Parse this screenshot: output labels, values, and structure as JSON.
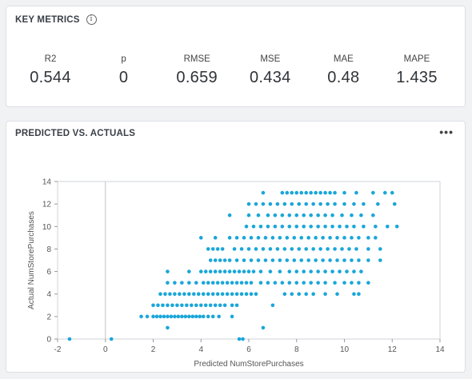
{
  "metrics_card": {
    "title": "KEY METRICS",
    "info_icon": "info-icon",
    "metrics": [
      {
        "label": "R2",
        "value": "0.544"
      },
      {
        "label": "p",
        "value": "0"
      },
      {
        "label": "RMSE",
        "value": "0.659"
      },
      {
        "label": "MSE",
        "value": "0.434"
      },
      {
        "label": "MAE",
        "value": "0.48"
      },
      {
        "label": "MAPE",
        "value": "1.435"
      }
    ]
  },
  "chart_card": {
    "title": "PREDICTED VS. ACTUALS",
    "menu_icon": "more-dots-icon"
  },
  "chart_data": {
    "type": "scatter",
    "xlabel": "Predicted NumStorePurchases",
    "ylabel": "Actual NumStorePurchases",
    "xlim": [
      -2,
      14
    ],
    "ylim": [
      0,
      14
    ],
    "xticks": [
      "-2",
      "0",
      "2",
      "4",
      "6",
      "8",
      "10",
      "12",
      "14"
    ],
    "yticks": [
      "0",
      "2",
      "4",
      "6",
      "8",
      "10",
      "12",
      "14"
    ],
    "point_color": "#1aa6d9",
    "points": [
      [
        -1.5,
        0
      ],
      [
        0.25,
        0
      ],
      [
        5.6,
        0
      ],
      [
        5.75,
        0
      ],
      [
        2.6,
        1
      ],
      [
        6.6,
        1
      ],
      [
        7.0,
        3
      ],
      [
        2.0,
        3
      ],
      [
        2.2,
        3
      ],
      [
        2.4,
        3
      ],
      [
        2.6,
        3
      ],
      [
        2.8,
        3
      ],
      [
        3.0,
        3
      ],
      [
        3.2,
        3
      ],
      [
        3.4,
        3
      ],
      [
        3.6,
        3
      ],
      [
        3.8,
        3
      ],
      [
        4.0,
        3
      ],
      [
        4.2,
        3
      ],
      [
        4.4,
        3
      ],
      [
        4.6,
        3
      ],
      [
        4.8,
        3
      ],
      [
        5.0,
        3
      ],
      [
        5.3,
        3
      ],
      [
        5.5,
        3
      ],
      [
        1.5,
        2
      ],
      [
        1.75,
        2
      ],
      [
        2.0,
        2
      ],
      [
        2.15,
        2
      ],
      [
        2.3,
        2
      ],
      [
        2.45,
        2
      ],
      [
        2.6,
        2
      ],
      [
        2.75,
        2
      ],
      [
        2.9,
        2
      ],
      [
        3.05,
        2
      ],
      [
        3.2,
        2
      ],
      [
        3.35,
        2
      ],
      [
        3.5,
        2
      ],
      [
        3.65,
        2
      ],
      [
        3.8,
        2
      ],
      [
        3.95,
        2
      ],
      [
        4.1,
        2
      ],
      [
        4.3,
        2
      ],
      [
        4.5,
        2
      ],
      [
        4.75,
        2
      ],
      [
        5.3,
        2
      ],
      [
        2.3,
        4
      ],
      [
        2.5,
        4
      ],
      [
        2.7,
        4
      ],
      [
        2.9,
        4
      ],
      [
        3.1,
        4
      ],
      [
        3.3,
        4
      ],
      [
        3.5,
        4
      ],
      [
        3.7,
        4
      ],
      [
        3.9,
        4
      ],
      [
        4.1,
        4
      ],
      [
        4.3,
        4
      ],
      [
        4.5,
        4
      ],
      [
        4.7,
        4
      ],
      [
        4.9,
        4
      ],
      [
        5.1,
        4
      ],
      [
        5.3,
        4
      ],
      [
        5.5,
        4
      ],
      [
        5.7,
        4
      ],
      [
        5.9,
        4
      ],
      [
        6.1,
        4
      ],
      [
        6.3,
        4
      ],
      [
        7.5,
        4
      ],
      [
        7.8,
        4
      ],
      [
        8.1,
        4
      ],
      [
        8.4,
        4
      ],
      [
        8.7,
        4
      ],
      [
        9.2,
        4
      ],
      [
        9.7,
        4
      ],
      [
        10.4,
        4
      ],
      [
        10.6,
        4
      ],
      [
        2.6,
        5
      ],
      [
        2.9,
        5
      ],
      [
        3.2,
        5
      ],
      [
        3.5,
        5
      ],
      [
        3.8,
        5
      ],
      [
        4.1,
        5
      ],
      [
        4.3,
        5
      ],
      [
        4.5,
        5
      ],
      [
        4.7,
        5
      ],
      [
        4.9,
        5
      ],
      [
        5.1,
        5
      ],
      [
        5.3,
        5
      ],
      [
        5.5,
        5
      ],
      [
        5.7,
        5
      ],
      [
        5.9,
        5
      ],
      [
        6.1,
        5
      ],
      [
        6.5,
        5
      ],
      [
        6.8,
        5
      ],
      [
        7.1,
        5
      ],
      [
        7.4,
        5
      ],
      [
        7.7,
        5
      ],
      [
        8.0,
        5
      ],
      [
        8.3,
        5
      ],
      [
        8.6,
        5
      ],
      [
        8.9,
        5
      ],
      [
        9.2,
        5
      ],
      [
        9.6,
        5
      ],
      [
        10.0,
        5
      ],
      [
        10.3,
        5
      ],
      [
        10.6,
        5
      ],
      [
        11.0,
        5
      ],
      [
        2.6,
        6
      ],
      [
        3.5,
        6
      ],
      [
        4.0,
        6
      ],
      [
        4.2,
        6
      ],
      [
        4.4,
        6
      ],
      [
        4.6,
        6
      ],
      [
        4.8,
        6
      ],
      [
        5.0,
        6
      ],
      [
        5.2,
        6
      ],
      [
        5.4,
        6
      ],
      [
        5.6,
        6
      ],
      [
        5.8,
        6
      ],
      [
        6.0,
        6
      ],
      [
        6.2,
        6
      ],
      [
        6.5,
        6
      ],
      [
        6.9,
        6
      ],
      [
        7.3,
        6
      ],
      [
        7.7,
        6
      ],
      [
        8.0,
        6
      ],
      [
        8.3,
        6
      ],
      [
        8.6,
        6
      ],
      [
        8.9,
        6
      ],
      [
        9.2,
        6
      ],
      [
        9.5,
        6
      ],
      [
        9.8,
        6
      ],
      [
        10.1,
        6
      ],
      [
        10.4,
        6
      ],
      [
        10.7,
        6
      ],
      [
        4.4,
        7
      ],
      [
        4.6,
        7
      ],
      [
        4.8,
        7
      ],
      [
        5.0,
        7
      ],
      [
        5.2,
        7
      ],
      [
        5.5,
        7
      ],
      [
        5.8,
        7
      ],
      [
        6.1,
        7
      ],
      [
        6.4,
        7
      ],
      [
        6.7,
        7
      ],
      [
        7.0,
        7
      ],
      [
        7.3,
        7
      ],
      [
        7.6,
        7
      ],
      [
        7.9,
        7
      ],
      [
        8.2,
        7
      ],
      [
        8.5,
        7
      ],
      [
        8.8,
        7
      ],
      [
        9.1,
        7
      ],
      [
        9.4,
        7
      ],
      [
        9.7,
        7
      ],
      [
        10.0,
        7
      ],
      [
        10.3,
        7
      ],
      [
        10.6,
        7
      ],
      [
        11.0,
        7
      ],
      [
        11.5,
        7
      ],
      [
        4.3,
        8
      ],
      [
        4.5,
        8
      ],
      [
        4.7,
        8
      ],
      [
        4.9,
        8
      ],
      [
        5.4,
        8
      ],
      [
        5.7,
        8
      ],
      [
        6.0,
        8
      ],
      [
        6.3,
        8
      ],
      [
        6.6,
        8
      ],
      [
        6.9,
        8
      ],
      [
        7.2,
        8
      ],
      [
        7.5,
        8
      ],
      [
        7.8,
        8
      ],
      [
        8.1,
        8
      ],
      [
        8.4,
        8
      ],
      [
        8.7,
        8
      ],
      [
        9.0,
        8
      ],
      [
        9.3,
        8
      ],
      [
        9.6,
        8
      ],
      [
        9.9,
        8
      ],
      [
        10.2,
        8
      ],
      [
        10.5,
        8
      ],
      [
        11.0,
        8
      ],
      [
        11.5,
        8
      ],
      [
        4.0,
        9
      ],
      [
        4.6,
        9
      ],
      [
        5.2,
        9
      ],
      [
        5.5,
        9
      ],
      [
        5.8,
        9
      ],
      [
        6.1,
        9
      ],
      [
        6.4,
        9
      ],
      [
        6.7,
        9
      ],
      [
        7.0,
        9
      ],
      [
        7.3,
        9
      ],
      [
        7.6,
        9
      ],
      [
        7.9,
        9
      ],
      [
        8.2,
        9
      ],
      [
        8.5,
        9
      ],
      [
        8.8,
        9
      ],
      [
        9.1,
        9
      ],
      [
        9.4,
        9
      ],
      [
        9.7,
        9
      ],
      [
        10.0,
        9
      ],
      [
        10.3,
        9
      ],
      [
        10.6,
        9
      ],
      [
        11.0,
        9
      ],
      [
        11.3,
        9
      ],
      [
        5.9,
        10
      ],
      [
        6.2,
        10
      ],
      [
        6.5,
        10
      ],
      [
        6.8,
        10
      ],
      [
        7.1,
        10
      ],
      [
        7.4,
        10
      ],
      [
        7.7,
        10
      ],
      [
        8.0,
        10
      ],
      [
        8.3,
        10
      ],
      [
        8.6,
        10
      ],
      [
        8.9,
        10
      ],
      [
        9.2,
        10
      ],
      [
        9.5,
        10
      ],
      [
        9.8,
        10
      ],
      [
        10.1,
        10
      ],
      [
        10.4,
        10
      ],
      [
        10.8,
        10
      ],
      [
        11.3,
        10
      ],
      [
        11.8,
        10
      ],
      [
        12.2,
        10
      ],
      [
        5.2,
        11
      ],
      [
        6.0,
        11
      ],
      [
        6.4,
        11
      ],
      [
        6.8,
        11
      ],
      [
        7.1,
        11
      ],
      [
        7.4,
        11
      ],
      [
        7.7,
        11
      ],
      [
        8.0,
        11
      ],
      [
        8.3,
        11
      ],
      [
        8.6,
        11
      ],
      [
        8.9,
        11
      ],
      [
        9.2,
        11
      ],
      [
        9.5,
        11
      ],
      [
        9.9,
        11
      ],
      [
        10.3,
        11
      ],
      [
        10.7,
        11
      ],
      [
        11.2,
        11
      ],
      [
        6.0,
        12
      ],
      [
        6.3,
        12
      ],
      [
        6.6,
        12
      ],
      [
        6.9,
        12
      ],
      [
        7.2,
        12
      ],
      [
        7.5,
        12
      ],
      [
        7.8,
        12
      ],
      [
        8.1,
        12
      ],
      [
        8.4,
        12
      ],
      [
        8.7,
        12
      ],
      [
        9.0,
        12
      ],
      [
        9.3,
        12
      ],
      [
        9.6,
        12
      ],
      [
        10.0,
        12
      ],
      [
        10.4,
        12
      ],
      [
        10.8,
        12
      ],
      [
        11.4,
        12
      ],
      [
        12.1,
        12
      ],
      [
        6.6,
        13
      ],
      [
        7.4,
        13
      ],
      [
        7.6,
        13
      ],
      [
        7.8,
        13
      ],
      [
        8.0,
        13
      ],
      [
        8.2,
        13
      ],
      [
        8.4,
        13
      ],
      [
        8.6,
        13
      ],
      [
        8.8,
        13
      ],
      [
        9.0,
        13
      ],
      [
        9.2,
        13
      ],
      [
        9.4,
        13
      ],
      [
        9.6,
        13
      ],
      [
        10.0,
        13
      ],
      [
        10.5,
        13
      ],
      [
        11.2,
        13
      ],
      [
        11.7,
        13
      ],
      [
        12.0,
        13
      ]
    ]
  }
}
